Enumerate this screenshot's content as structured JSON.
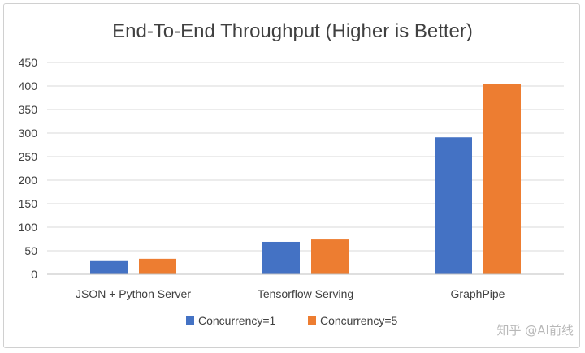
{
  "chart_data": {
    "type": "bar",
    "title": "End-To-End Throughput (Higher is Better)",
    "xlabel": "",
    "ylabel": "",
    "categories": [
      "JSON + Python Server",
      "Tensorflow Serving",
      "GraphPipe"
    ],
    "series": [
      {
        "name": "Concurrency=1",
        "color": "#4472c4",
        "values": [
          28,
          69,
          291
        ]
      },
      {
        "name": "Concurrency=5",
        "color": "#ed7d31",
        "values": [
          33,
          74,
          405
        ]
      }
    ],
    "ylim": [
      0,
      450
    ],
    "yticks": [
      0,
      50,
      100,
      150,
      200,
      250,
      300,
      350,
      400,
      450
    ],
    "grid": true,
    "legend_position": "bottom"
  },
  "watermark": "知乎 @AI前线"
}
